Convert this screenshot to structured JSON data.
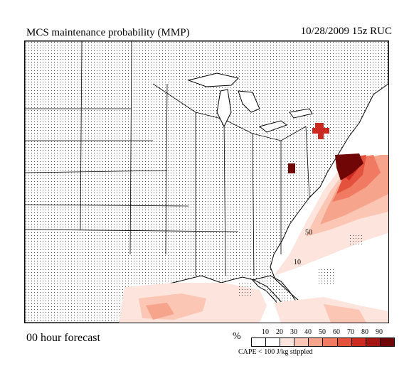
{
  "header": {
    "title": "MCS maintenance probability (MMP)",
    "valid_time": "10/28/2009  15z  RUC"
  },
  "footer": {
    "forecast_label": "00 hour forecast"
  },
  "legend": {
    "unit": "%",
    "ticks": [
      "10",
      "20",
      "30",
      "40",
      "50",
      "60",
      "70",
      "80",
      "90"
    ],
    "colors": [
      "#ffffff",
      "#fde4dc",
      "#fbc6b4",
      "#f7a48d",
      "#f17b62",
      "#e4513d",
      "#cc2a21",
      "#a41512",
      "#700606"
    ],
    "note": "CAPE < 100 J/kg stippled"
  },
  "map": {
    "contour_labels": [
      "50",
      "10"
    ],
    "stipple_color": "#444444",
    "boundary_color": "#000000"
  }
}
